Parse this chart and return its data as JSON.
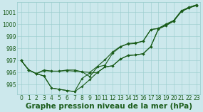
{
  "title": "Graphe pression niveau de la mer (hPa)",
  "x": [
    0,
    1,
    2,
    3,
    4,
    5,
    6,
    7,
    8,
    9,
    10,
    11,
    12,
    13,
    14,
    15,
    16,
    17,
    18,
    19,
    20,
    21,
    22,
    23
  ],
  "line1": [
    997.0,
    996.2,
    995.9,
    995.7,
    994.7,
    994.6,
    994.5,
    994.4,
    994.85,
    995.4,
    996.0,
    996.45,
    996.55,
    997.1,
    997.4,
    997.45,
    997.55,
    998.15,
    999.6,
    999.9,
    1000.25,
    1001.05,
    1001.35,
    1001.55
  ],
  "line2": [
    997.0,
    996.2,
    995.9,
    996.15,
    996.1,
    996.1,
    996.15,
    996.1,
    996.05,
    996.0,
    996.5,
    997.05,
    997.7,
    998.15,
    998.35,
    998.4,
    998.6,
    999.55,
    999.65,
    1000.0,
    1000.3,
    1001.1,
    1001.4,
    1001.6
  ],
  "line3": [
    997.0,
    996.2,
    995.9,
    996.2,
    996.1,
    996.1,
    996.2,
    996.2,
    996.05,
    995.65,
    996.45,
    996.6,
    997.6,
    998.1,
    998.4,
    998.45,
    998.6,
    999.55,
    999.65,
    1000.0,
    1000.3,
    1001.1,
    1001.4,
    1001.6
  ],
  "line4": [
    997.0,
    996.2,
    995.9,
    995.7,
    994.7,
    994.6,
    994.5,
    994.4,
    995.5,
    995.95,
    996.0,
    996.45,
    996.55,
    997.1,
    997.4,
    997.45,
    997.55,
    998.15,
    999.6,
    999.9,
    1000.25,
    1001.05,
    1001.35,
    1001.55
  ],
  "bg_color": "#cce8ec",
  "grid_color": "#99cccc",
  "line_color": "#1a5c1a",
  "marker": "D",
  "marker_size": 1.8,
  "line_width": 0.8,
  "ylim": [
    994.2,
    1001.8
  ],
  "yticks": [
    995,
    996,
    997,
    998,
    999,
    1000,
    1001
  ],
  "xlim": [
    -0.5,
    23.5
  ],
  "title_fontsize": 7.5,
  "tick_fontsize": 5.5,
  "ylabel_pad": 2
}
